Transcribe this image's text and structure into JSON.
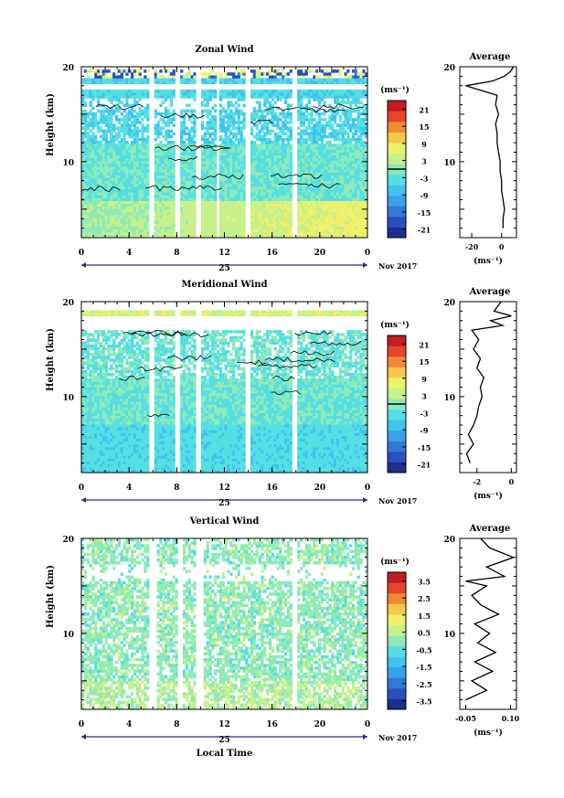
{
  "figure": {
    "x_label": "Local Time",
    "date_label": "Nov 2017",
    "day_label": "25",
    "y_axis_label": "Height (km)",
    "avg_title": "Average",
    "unit": "(ms⁻¹)"
  },
  "colormap": [
    "#1c2f8c",
    "#2a4fbf",
    "#3279d6",
    "#3aa1e8",
    "#40c4ee",
    "#55dfe3",
    "#8eeab8",
    "#c6f08a",
    "#eff06a",
    "#f8c84a",
    "#f28a34",
    "#e4472a",
    "#c21c24"
  ],
  "chart_data": [
    {
      "type": "heatmap",
      "title": "Zonal Wind",
      "xlabel": "",
      "ylabel": "Height (km)",
      "x_ticks": [
        "0",
        "4",
        "8",
        "12",
        "16",
        "20",
        "0"
      ],
      "xlim": [
        0,
        24
      ],
      "y_ticks": [
        "20",
        "10"
      ],
      "ylim": [
        2,
        20
      ],
      "colorbar": {
        "label": "(ms⁻¹)",
        "ticks": [
          "21",
          "15",
          "9",
          "3",
          "-3",
          "-9",
          "-15",
          "-21"
        ],
        "range": [
          -24,
          24
        ],
        "zero_line": true
      },
      "average": {
        "title": "Average",
        "xlabel": "(ms⁻¹)",
        "x_ticks": [
          "-20",
          "0"
        ],
        "xlim": [
          -28,
          10
        ],
        "y_ticks": [
          "20",
          "10"
        ],
        "profile": [
          [
            3,
            1
          ],
          [
            4,
            1
          ],
          [
            5,
            2
          ],
          [
            6,
            1
          ],
          [
            7,
            0
          ],
          [
            8,
            0
          ],
          [
            9,
            -1
          ],
          [
            10,
            -1
          ],
          [
            11,
            -2
          ],
          [
            12,
            -3
          ],
          [
            13,
            -3
          ],
          [
            14,
            -4
          ],
          [
            15,
            -2
          ],
          [
            16,
            -4
          ],
          [
            17,
            -3
          ],
          [
            18,
            -24
          ],
          [
            18.5,
            -6
          ],
          [
            19,
            2
          ],
          [
            19.5,
            6
          ],
          [
            20,
            8
          ]
        ]
      },
      "missing_hours": [
        [
          5.6,
          6.2
        ],
        [
          7.8,
          8.3
        ],
        [
          9.7,
          10.1
        ],
        [
          11.3,
          11.6
        ],
        [
          13.8,
          14.2
        ],
        [
          17.7,
          18.0
        ]
      ]
    },
    {
      "type": "heatmap",
      "title": "Meridional Wind",
      "xlabel": "",
      "ylabel": "Height (km)",
      "x_ticks": [
        "0",
        "4",
        "8",
        "12",
        "16",
        "20",
        "0"
      ],
      "xlim": [
        0,
        24
      ],
      "y_ticks": [
        "20",
        "10"
      ],
      "ylim": [
        2,
        20
      ],
      "colorbar": {
        "label": "(ms⁻¹)",
        "ticks": [
          "21",
          "15",
          "9",
          "3",
          "-3",
          "-9",
          "-15",
          "-21"
        ],
        "range": [
          -24,
          24
        ],
        "zero_line": true
      },
      "average": {
        "title": "Average",
        "xlabel": "(ms⁻¹)",
        "x_ticks": [
          "-2",
          "0"
        ],
        "xlim": [
          -3,
          0.3
        ],
        "y_ticks": [
          "20",
          "10"
        ],
        "profile": [
          [
            3,
            -2.4
          ],
          [
            4,
            -2.6
          ],
          [
            5,
            -2.2
          ],
          [
            6,
            -2.5
          ],
          [
            7,
            -2.2
          ],
          [
            8,
            -2.0
          ],
          [
            9,
            -1.9
          ],
          [
            10,
            -1.7
          ],
          [
            11,
            -1.8
          ],
          [
            12,
            -1.6
          ],
          [
            13,
            -2.0
          ],
          [
            14,
            -1.8
          ],
          [
            15,
            -2.2
          ],
          [
            16,
            -1.9
          ],
          [
            17,
            -2.3
          ],
          [
            17.5,
            -0.5
          ],
          [
            18,
            -1.2
          ],
          [
            18.5,
            0.0
          ],
          [
            19,
            -1.0
          ],
          [
            20,
            -0.6
          ]
        ]
      },
      "missing_hours": [
        [
          5.6,
          6.2
        ],
        [
          7.8,
          8.3
        ],
        [
          9.7,
          10.1
        ],
        [
          13.8,
          14.2
        ],
        [
          17.7,
          18.0
        ]
      ]
    },
    {
      "type": "heatmap",
      "title": "Vertical Wind",
      "xlabel": "Local Time",
      "ylabel": "Height (km)",
      "x_ticks": [
        "0",
        "4",
        "8",
        "12",
        "16",
        "20",
        "0"
      ],
      "xlim": [
        0,
        24
      ],
      "y_ticks": [
        "20",
        "10"
      ],
      "ylim": [
        2,
        20
      ],
      "colorbar": {
        "label": "(ms⁻¹)",
        "ticks": [
          "3.5",
          "2.5",
          "1.5",
          "0.5",
          "-0.5",
          "-1.5",
          "-2.5",
          "-3.5"
        ],
        "range": [
          -4,
          4
        ],
        "zero_line": false
      },
      "average": {
        "title": "Average",
        "xlabel": "(ms⁻¹)",
        "x_ticks": [
          "-0.05",
          "0.10"
        ],
        "xlim": [
          -0.07,
          0.12
        ],
        "y_ticks": [
          "20",
          "10"
        ],
        "profile": [
          [
            3,
            -0.05
          ],
          [
            4,
            0.02
          ],
          [
            5,
            -0.03
          ],
          [
            6,
            0.04
          ],
          [
            7,
            -0.02
          ],
          [
            8,
            0.05
          ],
          [
            9,
            -0.01
          ],
          [
            10,
            0.03
          ],
          [
            11,
            -0.02
          ],
          [
            12,
            0.06
          ],
          [
            13,
            0.0
          ],
          [
            14,
            -0.03
          ],
          [
            15,
            0.02
          ],
          [
            15.5,
            -0.05
          ],
          [
            16,
            0.08
          ],
          [
            17,
            0.02
          ],
          [
            18,
            0.11
          ],
          [
            19,
            0.03
          ],
          [
            20,
            0.0
          ]
        ]
      },
      "missing_hours": [
        [
          5.6,
          6.3
        ],
        [
          8.0,
          8.5
        ],
        [
          9.6,
          10.3
        ],
        [
          17.7,
          18.0
        ]
      ]
    }
  ]
}
